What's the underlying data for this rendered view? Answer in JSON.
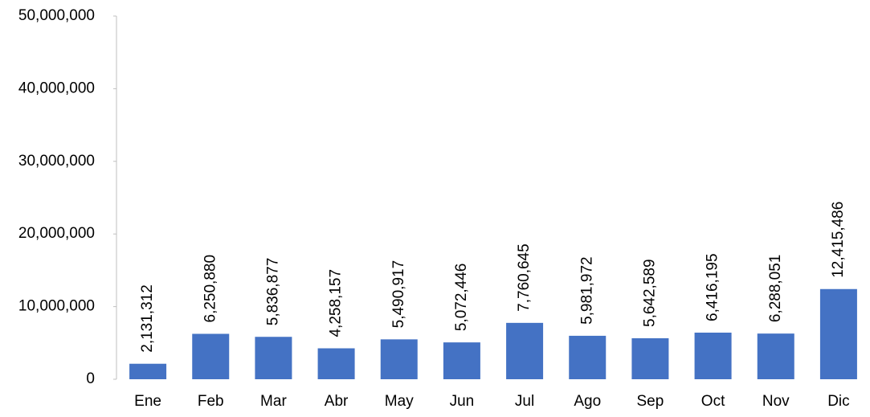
{
  "chart_data": {
    "type": "bar",
    "categories": [
      "Ene",
      "Feb",
      "Mar",
      "Abr",
      "May",
      "Jun",
      "Jul",
      "Ago",
      "Sep",
      "Oct",
      "Nov",
      "Dic"
    ],
    "values": [
      2131312,
      6250880,
      5836877,
      4258157,
      5490917,
      5072446,
      7760645,
      5981972,
      5642589,
      6416195,
      6288051,
      12415486
    ],
    "value_labels": [
      "2,131,312",
      "6,250,880",
      "5,836,877",
      "4,258,157",
      "5,490,917",
      "5,072,446",
      "7,760,645",
      "5,981,972",
      "5,642,589",
      "6,416,195",
      "6,288,051",
      "12,415,486"
    ],
    "color": "#4472c4",
    "ylim": [
      0,
      50000000
    ],
    "yticks": [
      0,
      {
        "value": 10000000,
        "label": "10,000,000"
      },
      {
        "value": 20000000,
        "label": "20,000,000"
      },
      {
        "value": 30000000,
        "label": "30,000,000"
      },
      {
        "value": 40000000,
        "label": "40,000,000"
      },
      {
        "value": 50000000,
        "label": "50,000,000"
      }
    ],
    "grid": false
  }
}
